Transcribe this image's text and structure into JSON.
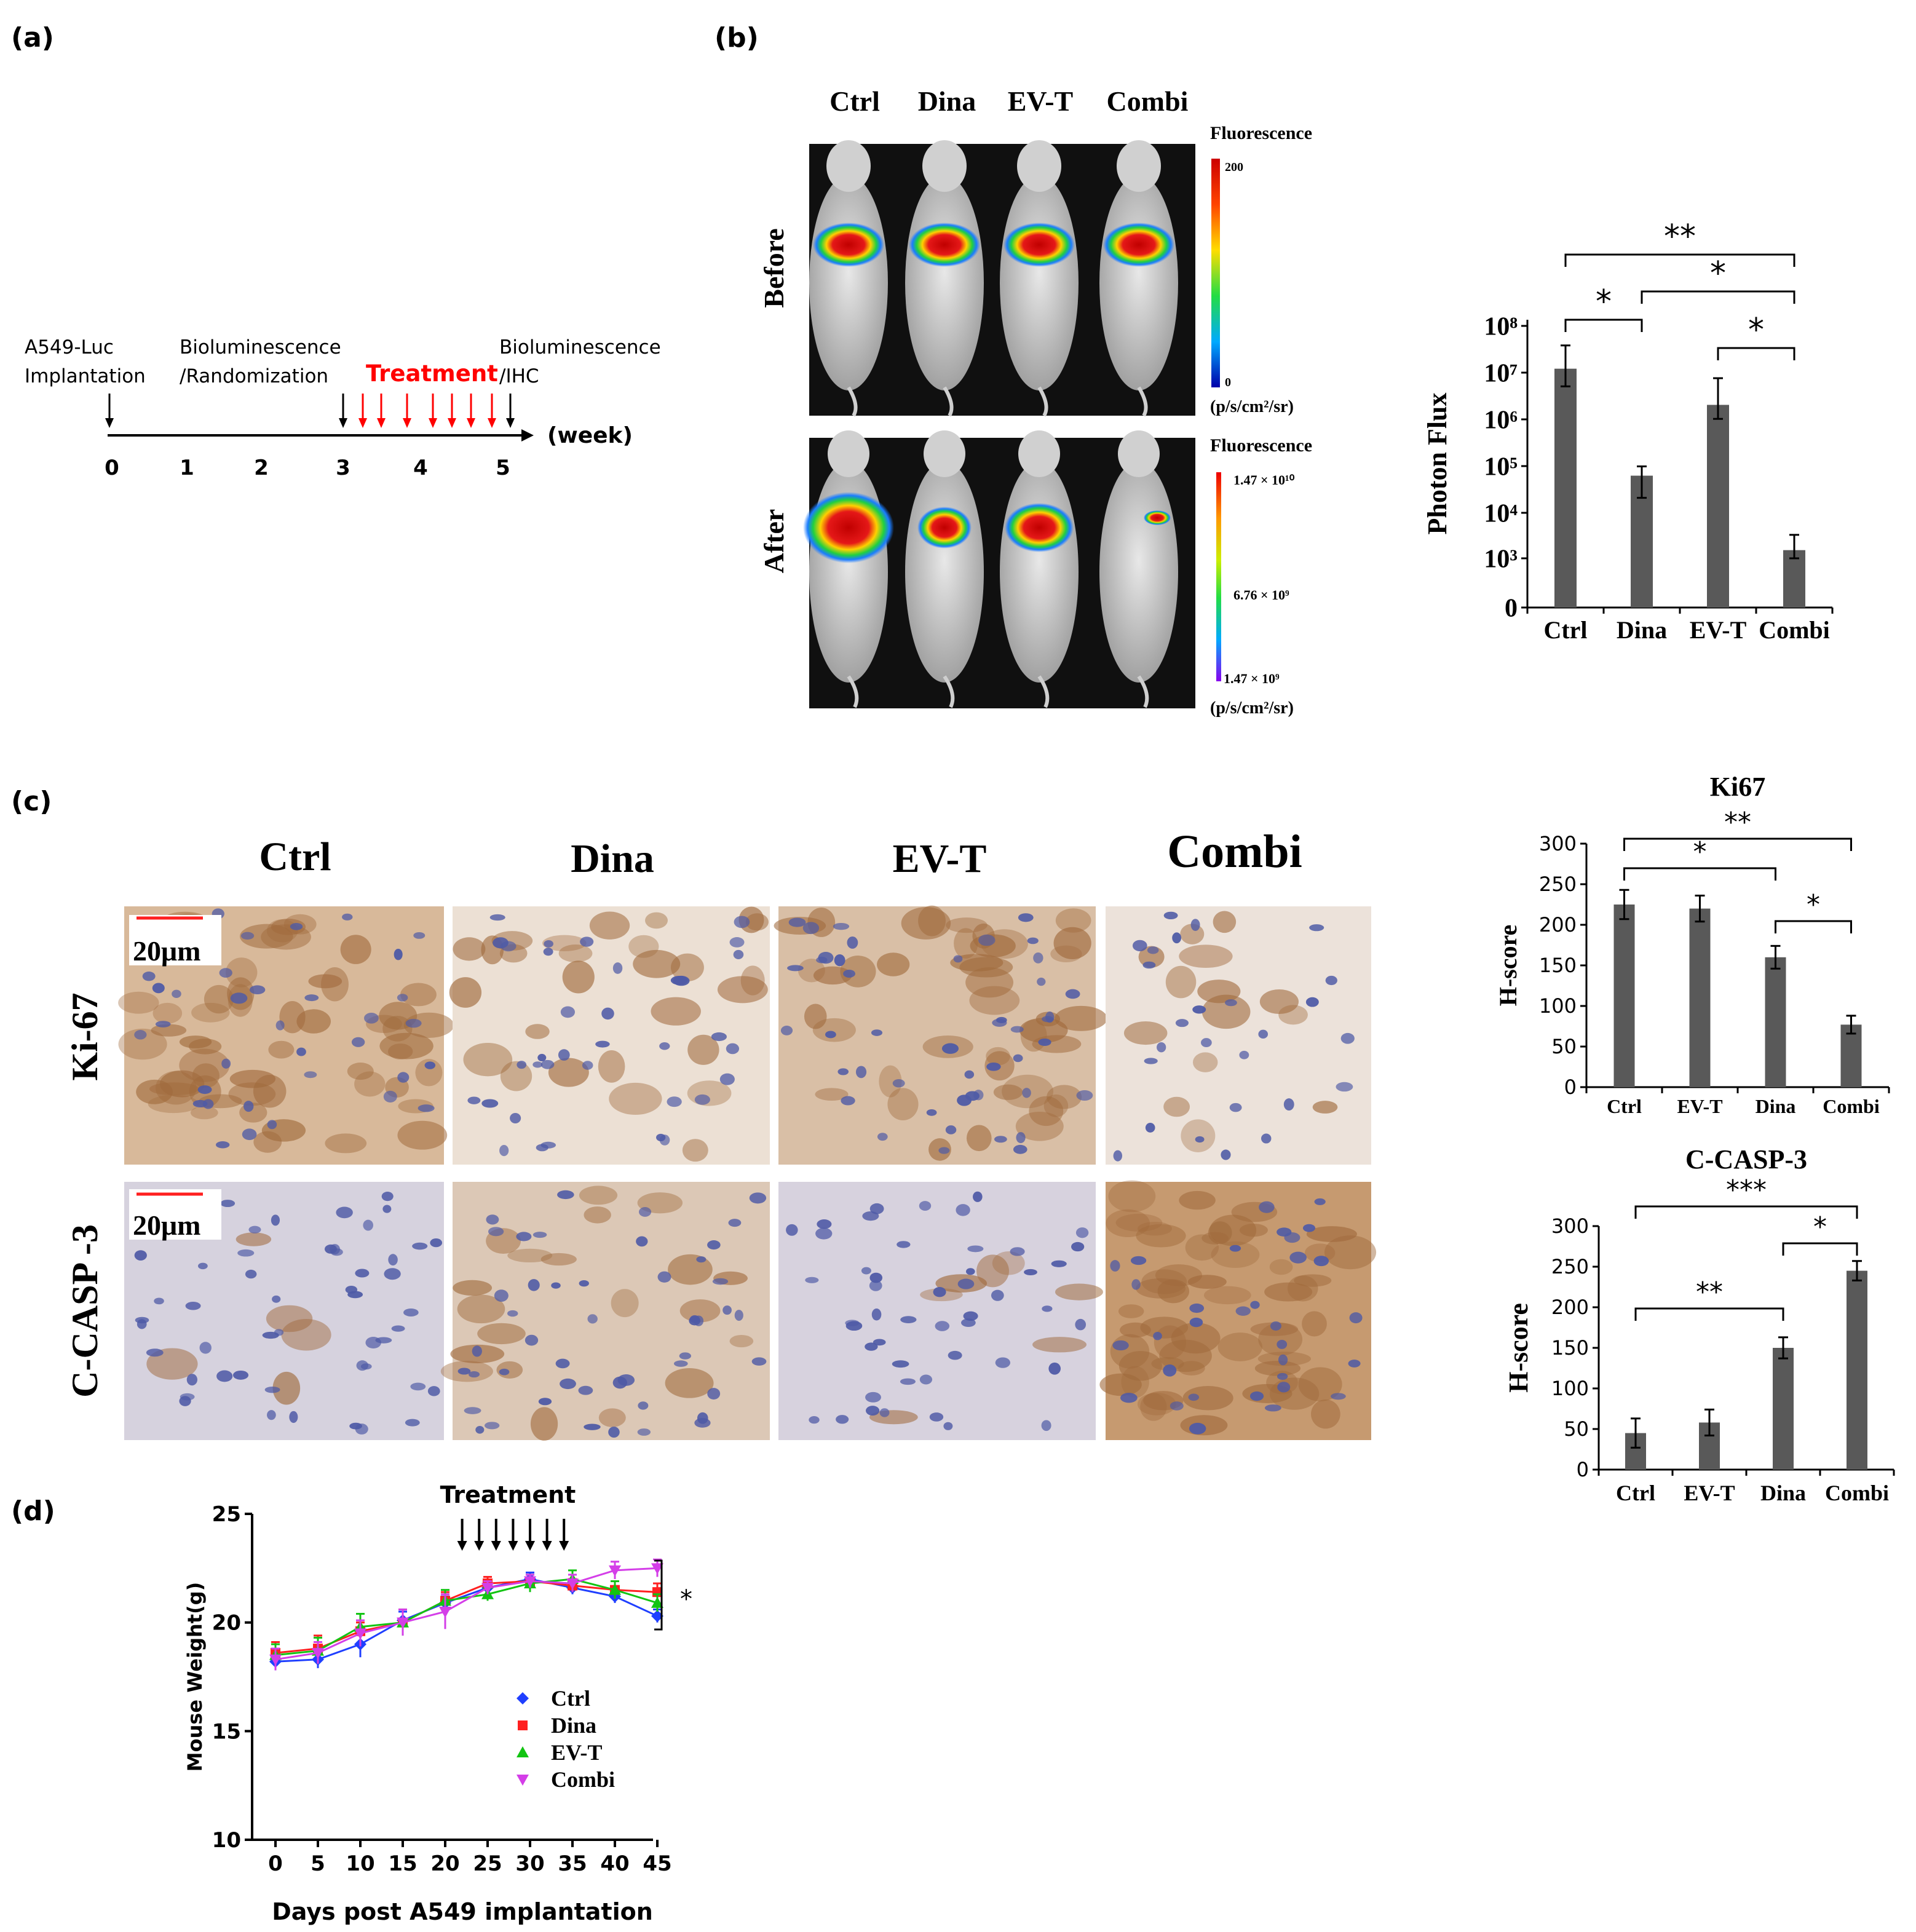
{
  "panels": {
    "a": {
      "label": "(a)",
      "event1": [
        "A549-Luc",
        "Implantation"
      ],
      "event2": [
        "Bioluminescence",
        "/Randomization"
      ],
      "treatment": "Treatment",
      "event3": [
        "Bioluminescence",
        "/IHC"
      ],
      "weeks": [
        "0",
        "1",
        "2",
        "3",
        "4",
        "5"
      ],
      "unit": "(week)"
    },
    "b": {
      "label": "(b)",
      "groups": [
        "Ctrl",
        "Dina",
        "EV-T",
        "Combi"
      ],
      "rows": [
        "Before",
        "After"
      ],
      "scale_title": "Fluorescence",
      "before_scale": [
        "200",
        "0"
      ],
      "after_scale": [
        "1.47 × 10¹⁰",
        "6.76 × 10⁹",
        "1.47 × 10⁹"
      ],
      "scale_unit": "(p/s/cm²/sr)"
    },
    "c": {
      "label": "(c)",
      "groups": [
        "Ctrl",
        "Dina",
        "EV-T",
        "Combi"
      ],
      "rows": [
        "Ki-67",
        "C-CASP -3"
      ],
      "scale_bar": "20μm"
    },
    "d": {
      "label": "(d)",
      "treatment": "Treatment",
      "sig": "*"
    }
  },
  "colors": {
    "bar": "#595959",
    "treatment_red": "#ff0000",
    "ctrl": "#1f3fff",
    "dina": "#ff2020",
    "evt": "#12c412",
    "combi": "#d43ee8",
    "stain_brown": "#a06a3c",
    "nucleus_blue": "#4e5aa6"
  },
  "chart_data": [
    {
      "id": "photon_flux",
      "type": "bar",
      "categories": [
        "Ctrl",
        "Dina",
        "EV-T",
        "Combi"
      ],
      "values": [
        12000000,
        60000,
        2000000,
        1500
      ],
      "errors_low": [
        5000000,
        20000,
        1000000,
        800
      ],
      "errors_high": [
        38000000,
        95000,
        7500000,
        3200
      ],
      "ylabel": "Photon Flux",
      "yscale": "log",
      "yticks": [
        "0",
        "10³",
        "10⁴",
        "10⁵",
        "10⁶",
        "10⁷",
        "10⁸"
      ],
      "ylim": [
        100,
        100000000
      ],
      "significance": [
        {
          "from": "Ctrl",
          "to": "Dina",
          "label": "*"
        },
        {
          "from": "Ctrl",
          "to": "Combi",
          "label": "**"
        },
        {
          "from": "Dina",
          "to": "Combi",
          "label": "*"
        },
        {
          "from": "EV-T",
          "to": "Combi",
          "label": "*"
        }
      ]
    },
    {
      "id": "ki67",
      "type": "bar",
      "title": "Ki67",
      "categories": [
        "Ctrl",
        "EV-T",
        "Dina",
        "Combi"
      ],
      "values": [
        225,
        220,
        160,
        77
      ],
      "errors": [
        18,
        16,
        14,
        11
      ],
      "ylabel": "H-score",
      "ylim": [
        0,
        300
      ],
      "yticks": [
        "0",
        "50",
        "100",
        "150",
        "200",
        "250",
        "300"
      ],
      "significance": [
        {
          "from": "Ctrl",
          "to": "Combi",
          "label": "**"
        },
        {
          "from": "Ctrl",
          "to": "Dina",
          "label": "*"
        },
        {
          "from": "Dina",
          "to": "Combi",
          "label": "*"
        }
      ]
    },
    {
      "id": "ccasp3",
      "type": "bar",
      "title": "C-CASP-3",
      "categories": [
        "Ctrl",
        "EV-T",
        "Dina",
        "Combi"
      ],
      "values": [
        45,
        58,
        150,
        245
      ],
      "errors": [
        18,
        16,
        13,
        12
      ],
      "ylabel": "H-score",
      "ylim": [
        0,
        300
      ],
      "yticks": [
        "0",
        "50",
        "100",
        "150",
        "200",
        "250",
        "300"
      ],
      "significance": [
        {
          "from": "Ctrl",
          "to": "Combi",
          "label": "***"
        },
        {
          "from": "Dina",
          "to": "Combi",
          "label": "*"
        },
        {
          "from": "Ctrl",
          "to": "Dina",
          "label": "**"
        }
      ]
    },
    {
      "id": "weight",
      "type": "line",
      "x": [
        0,
        5,
        10,
        15,
        20,
        25,
        30,
        35,
        40,
        45
      ],
      "xticks": [
        "0",
        "5",
        "10",
        "15",
        "20",
        "25",
        "30",
        "35",
        "40",
        "45"
      ],
      "xlabel": "Days post A549 implantation",
      "ylabel": "Mouse Weight(g)",
      "ylim": [
        10,
        25
      ],
      "yticks": [
        "10",
        "15",
        "20",
        "25"
      ],
      "treatment_days": [
        22,
        24,
        26,
        28,
        30,
        32,
        34
      ],
      "legend_position": "lower-center",
      "series": [
        {
          "name": "Ctrl",
          "values": [
            18.2,
            18.3,
            19.0,
            20.1,
            20.9,
            21.6,
            22.0,
            21.6,
            21.2,
            20.3
          ],
          "errors": [
            0.4,
            0.4,
            0.6,
            0.4,
            0.3,
            0.3,
            0.3,
            0.3,
            0.3,
            0.3
          ]
        },
        {
          "name": "Dina",
          "values": [
            18.6,
            18.8,
            19.6,
            20.0,
            21.0,
            21.8,
            21.9,
            21.7,
            21.5,
            21.4
          ],
          "errors": [
            0.5,
            0.6,
            0.4,
            0.6,
            0.4,
            0.3,
            0.3,
            0.3,
            0.4,
            0.4
          ]
        },
        {
          "name": "EV-T",
          "values": [
            18.5,
            18.7,
            19.8,
            20.0,
            21.0,
            21.3,
            21.8,
            22.0,
            21.5,
            20.9
          ],
          "errors": [
            0.5,
            0.6,
            0.6,
            0.6,
            0.5,
            0.3,
            0.4,
            0.4,
            0.4,
            0.4
          ]
        },
        {
          "name": "Combi",
          "values": [
            18.3,
            18.6,
            19.5,
            20.0,
            20.5,
            21.6,
            21.9,
            21.8,
            22.4,
            22.5
          ],
          "errors": [
            0.5,
            0.5,
            0.6,
            0.6,
            0.8,
            0.3,
            0.3,
            0.4,
            0.4,
            0.4
          ]
        }
      ]
    }
  ]
}
